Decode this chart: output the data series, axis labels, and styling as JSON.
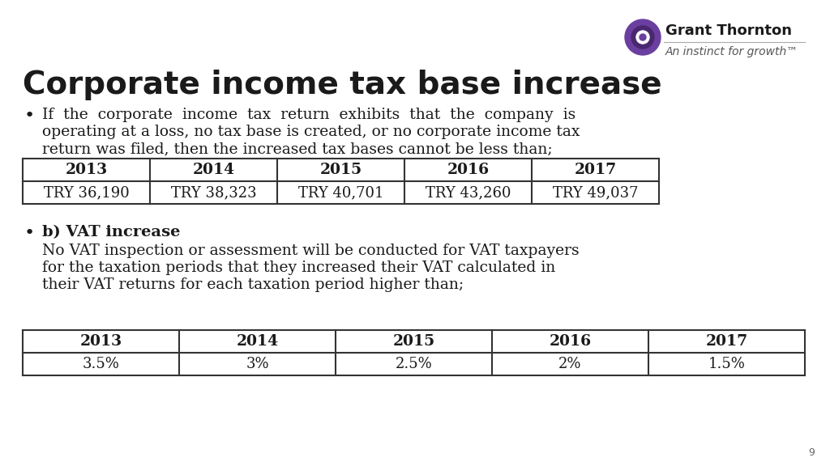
{
  "title": "Corporate income tax base increase",
  "bullet1_text_line1": "If  the  corporate  income  tax  return  exhibits  that  the  company  is",
  "bullet1_text_line2": "operating at a loss, no tax base is created, or no corporate income tax",
  "bullet1_text_line3": "return was filed, then the increased tax bases cannot be less than;",
  "table1_headers": [
    "2013",
    "2014",
    "2015",
    "2016",
    "2017"
  ],
  "table1_values": [
    "TRY 36,190",
    "TRY 38,323",
    "TRY 40,701",
    "TRY 43,260",
    "TRY 49,037"
  ],
  "bullet2_bold": "b) VAT increase",
  "bullet2_text_line1": "No VAT inspection or assessment will be conducted for VAT taxpayers",
  "bullet2_text_line2": "for the taxation periods that they increased their VAT calculated in",
  "bullet2_text_line3": "their VAT returns for each taxation period higher than;",
  "table2_headers": [
    "2013",
    "2014",
    "2015",
    "2016",
    "2017"
  ],
  "table2_values": [
    "3.5%",
    "3%",
    "2.5%",
    "2%",
    "1.5%"
  ],
  "logo_text": "Grant Thornton",
  "logo_subtext": "An instinct for growth™",
  "page_number": "9",
  "bg_color": "#ffffff",
  "text_color": "#1a1a1a",
  "table_border_color": "#333333",
  "title_color": "#1a1a1a",
  "logo_purple": "#6b3fa0",
  "logo_dark": "#4a2870",
  "gray_text": "#666666",
  "title_fontsize": 28,
  "body_fontsize": 13.5,
  "header_fontsize": 13.5,
  "table_fontsize": 13,
  "logo_name_fontsize": 13,
  "logo_sub_fontsize": 10,
  "page_fontsize": 9
}
